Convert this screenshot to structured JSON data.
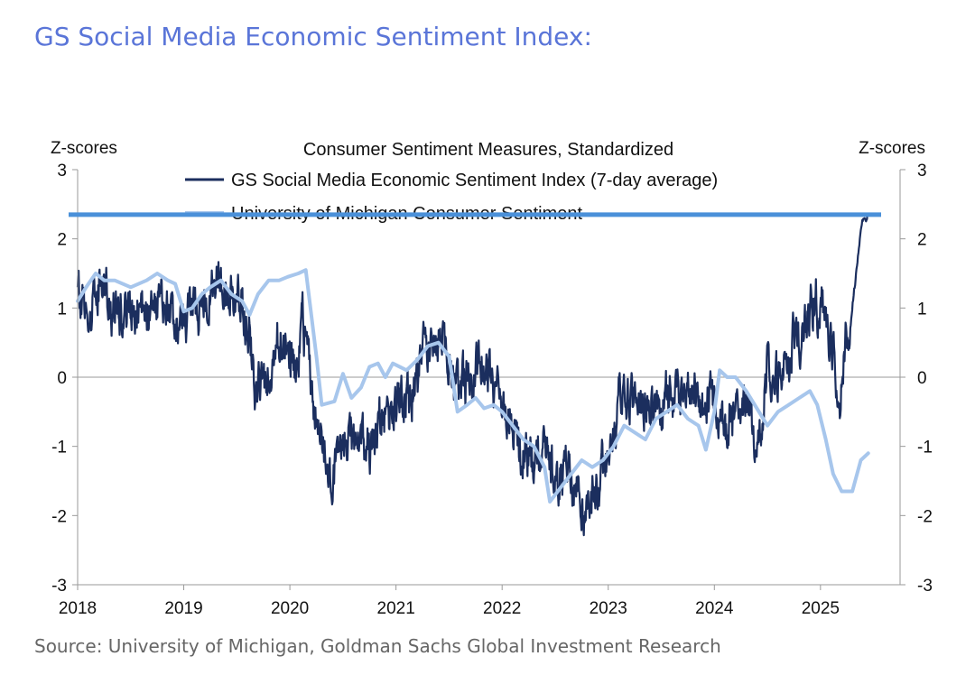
{
  "headline": "GS Social Media Economic Sentiment Index:",
  "source": "Source: University of Michigan, Goldman Sachs Global Investment Research",
  "chart_data": {
    "type": "line",
    "title": "Consumer Sentiment Measures, Standardized",
    "ylabel_left": "Z-scores",
    "ylabel_right": "Z-scores",
    "ylim": [
      -3,
      3
    ],
    "yticks": [
      "3",
      "2",
      "1",
      "0",
      "-1",
      "-2",
      "-3"
    ],
    "xlim": [
      2018.0,
      2025.75
    ],
    "xticks": [
      "2018",
      "2019",
      "2020",
      "2021",
      "2022",
      "2023",
      "2024",
      "2025"
    ],
    "grid": false,
    "legend_placement": "top-center",
    "reference_line": {
      "y": 2.35,
      "color": "#4a90d9"
    },
    "series": [
      {
        "name": "GS Social Media Economic Sentiment Index (7-day average)",
        "color": "#1b2e5e",
        "anchors": [
          [
            2018.0,
            1.3
          ],
          [
            2018.08,
            0.9
          ],
          [
            2018.2,
            1.3
          ],
          [
            2018.35,
            1.05
          ],
          [
            2018.5,
            0.9
          ],
          [
            2018.65,
            1.1
          ],
          [
            2018.8,
            1.0
          ],
          [
            2018.95,
            1.0
          ],
          [
            2019.05,
            0.9
          ],
          [
            2019.15,
            1.05
          ],
          [
            2019.25,
            1.3
          ],
          [
            2019.35,
            1.4
          ],
          [
            2019.45,
            1.2
          ],
          [
            2019.55,
            1.0
          ],
          [
            2019.62,
            0.7
          ],
          [
            2019.68,
            -0.2
          ],
          [
            2019.74,
            -0.2
          ],
          [
            2019.82,
            0.1
          ],
          [
            2019.9,
            0.6
          ],
          [
            2019.98,
            0.4
          ],
          [
            2020.05,
            0.1
          ],
          [
            2020.12,
            0.8
          ],
          [
            2020.18,
            0.3
          ],
          [
            2020.22,
            -0.3
          ],
          [
            2020.28,
            -0.9
          ],
          [
            2020.35,
            -1.2
          ],
          [
            2020.42,
            -1.4
          ],
          [
            2020.47,
            -1.0
          ],
          [
            2020.55,
            -1.0
          ],
          [
            2020.65,
            -0.9
          ],
          [
            2020.75,
            -1.0
          ],
          [
            2020.85,
            -0.7
          ],
          [
            2020.95,
            -0.4
          ],
          [
            2021.05,
            -0.2
          ],
          [
            2021.15,
            -0.3
          ],
          [
            2021.25,
            0.2
          ],
          [
            2021.32,
            0.5
          ],
          [
            2021.4,
            0.4
          ],
          [
            2021.47,
            0.5
          ],
          [
            2021.53,
            0.0
          ],
          [
            2021.6,
            -0.1
          ],
          [
            2021.7,
            0.0
          ],
          [
            2021.8,
            0.2
          ],
          [
            2021.9,
            0.0
          ],
          [
            2021.98,
            -0.4
          ],
          [
            2022.1,
            -0.9
          ],
          [
            2022.2,
            -1.0
          ],
          [
            2022.3,
            -1.1
          ],
          [
            2022.4,
            -1.2
          ],
          [
            2022.5,
            -1.3
          ],
          [
            2022.6,
            -1.4
          ],
          [
            2022.7,
            -1.8
          ],
          [
            2022.8,
            -2.0
          ],
          [
            2022.88,
            -1.7
          ],
          [
            2022.96,
            -1.3
          ],
          [
            2023.05,
            -0.7
          ],
          [
            2023.15,
            -0.3
          ],
          [
            2023.25,
            -0.4
          ],
          [
            2023.35,
            -0.3
          ],
          [
            2023.45,
            -0.4
          ],
          [
            2023.55,
            -0.2
          ],
          [
            2023.65,
            -0.3
          ],
          [
            2023.75,
            -0.2
          ],
          [
            2023.85,
            -0.3
          ],
          [
            2023.95,
            -0.2
          ],
          [
            2024.05,
            -0.5
          ],
          [
            2024.15,
            -0.7
          ],
          [
            2024.25,
            -0.4
          ],
          [
            2024.35,
            -0.5
          ],
          [
            2024.45,
            -0.8
          ],
          [
            2024.5,
            0.2
          ],
          [
            2024.58,
            -0.1
          ],
          [
            2024.68,
            0.3
          ],
          [
            2024.78,
            0.5
          ],
          [
            2024.88,
            0.8
          ],
          [
            2024.95,
            1.0
          ],
          [
            2025.02,
            0.9
          ],
          [
            2025.1,
            0.5
          ],
          [
            2025.15,
            0.1
          ],
          [
            2025.19,
            -0.3
          ],
          [
            2025.23,
            0.7
          ],
          [
            2025.27,
            0.6
          ],
          [
            2025.32,
            1.3
          ],
          [
            2025.37,
            2.0
          ],
          [
            2025.4,
            2.3
          ],
          [
            2025.44,
            2.35
          ]
        ]
      },
      {
        "name": "University of Michigan Consumer Sentiment",
        "color": "#a7c6ec",
        "anchors": [
          [
            2018.0,
            1.1
          ],
          [
            2018.08,
            1.3
          ],
          [
            2018.17,
            1.5
          ],
          [
            2018.25,
            1.4
          ],
          [
            2018.35,
            1.4
          ],
          [
            2018.5,
            1.3
          ],
          [
            2018.65,
            1.4
          ],
          [
            2018.75,
            1.5
          ],
          [
            2018.85,
            1.4
          ],
          [
            2018.92,
            1.35
          ],
          [
            2019.0,
            0.95
          ],
          [
            2019.08,
            1.0
          ],
          [
            2019.17,
            1.2
          ],
          [
            2019.25,
            1.3
          ],
          [
            2019.35,
            1.4
          ],
          [
            2019.45,
            1.2
          ],
          [
            2019.55,
            1.1
          ],
          [
            2019.62,
            0.9
          ],
          [
            2019.7,
            1.2
          ],
          [
            2019.8,
            1.4
          ],
          [
            2019.9,
            1.4
          ],
          [
            2019.98,
            1.45
          ],
          [
            2020.08,
            1.5
          ],
          [
            2020.15,
            1.55
          ],
          [
            2020.25,
            0.3
          ],
          [
            2020.3,
            -0.4
          ],
          [
            2020.42,
            -0.35
          ],
          [
            2020.5,
            0.05
          ],
          [
            2020.58,
            -0.3
          ],
          [
            2020.67,
            -0.15
          ],
          [
            2020.75,
            0.15
          ],
          [
            2020.83,
            0.2
          ],
          [
            2020.9,
            0.0
          ],
          [
            2020.97,
            0.2
          ],
          [
            2021.1,
            0.1
          ],
          [
            2021.2,
            0.25
          ],
          [
            2021.3,
            0.45
          ],
          [
            2021.4,
            0.5
          ],
          [
            2021.5,
            0.3
          ],
          [
            2021.58,
            -0.5
          ],
          [
            2021.67,
            -0.4
          ],
          [
            2021.75,
            -0.3
          ],
          [
            2021.83,
            -0.45
          ],
          [
            2021.92,
            -0.4
          ],
          [
            2022.0,
            -0.5
          ],
          [
            2022.1,
            -0.7
          ],
          [
            2022.2,
            -0.9
          ],
          [
            2022.3,
            -1.0
          ],
          [
            2022.4,
            -1.3
          ],
          [
            2022.45,
            -1.8
          ],
          [
            2022.55,
            -1.6
          ],
          [
            2022.65,
            -1.4
          ],
          [
            2022.75,
            -1.2
          ],
          [
            2022.85,
            -1.3
          ],
          [
            2022.95,
            -1.2
          ],
          [
            2023.05,
            -1.0
          ],
          [
            2023.15,
            -0.7
          ],
          [
            2023.25,
            -0.8
          ],
          [
            2023.35,
            -0.9
          ],
          [
            2023.45,
            -0.6
          ],
          [
            2023.55,
            -0.5
          ],
          [
            2023.65,
            -0.4
          ],
          [
            2023.75,
            -0.6
          ],
          [
            2023.85,
            -0.7
          ],
          [
            2023.92,
            -1.05
          ],
          [
            2024.0,
            -0.5
          ],
          [
            2024.05,
            0.1
          ],
          [
            2024.12,
            0.0
          ],
          [
            2024.2,
            0.0
          ],
          [
            2024.3,
            -0.2
          ],
          [
            2024.42,
            -0.5
          ],
          [
            2024.5,
            -0.7
          ],
          [
            2024.6,
            -0.5
          ],
          [
            2024.7,
            -0.4
          ],
          [
            2024.8,
            -0.3
          ],
          [
            2024.9,
            -0.2
          ],
          [
            2024.97,
            -0.4
          ],
          [
            2025.05,
            -0.9
          ],
          [
            2025.12,
            -1.4
          ],
          [
            2025.2,
            -1.65
          ],
          [
            2025.3,
            -1.65
          ],
          [
            2025.38,
            -1.2
          ],
          [
            2025.45,
            -1.1
          ]
        ]
      }
    ]
  }
}
